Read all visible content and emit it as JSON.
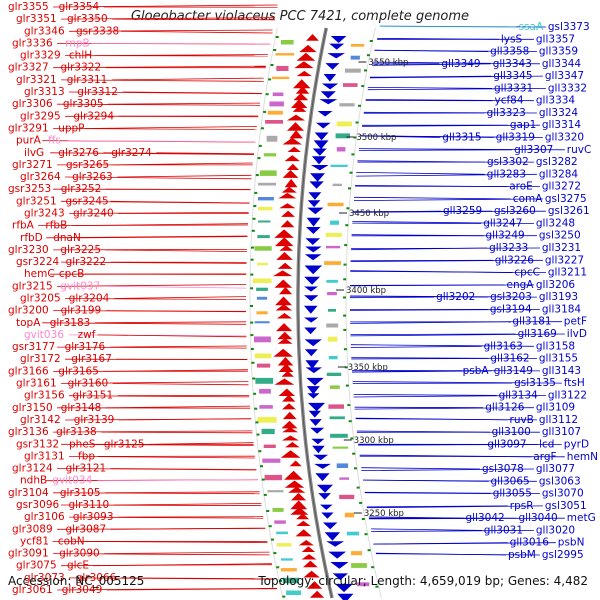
{
  "title": "Gloeobacter violaceus PCC 7421, complete genome",
  "footer": {
    "accession": "Accession: NC_005125",
    "topology": "Topology: circular; Length: 4,659,019 bp; Genes: 4,482"
  },
  "colors": {
    "forward": "#dd0000",
    "reverse": "#0000cc",
    "rna": "#ff88cc",
    "trna": "#33cccc",
    "tick": "#118811",
    "backbone": "#8a8a8a"
  },
  "kbp_marks": [
    "3550 kbp",
    "3500 kbp",
    "3450 kbp",
    "3400 kbp",
    "3350 kbp",
    "3300 kbp",
    "3250 kbp"
  ],
  "left_labels": [
    "glr3355",
    "glr3354",
    "glr3351",
    "glr3350",
    "glr3346",
    "gsr3338",
    "glr3336",
    "rnpB",
    "glr3329",
    "chlH",
    "glr3327",
    "glr3322",
    "glr3321",
    "glr3311",
    "glr3313",
    "glr3312",
    "glr3306",
    "glr3305",
    "glr3295",
    "glr3294",
    "glr3291",
    "uppP",
    "purA",
    "ffs",
    "ilvG",
    "glr3276",
    "glr3274",
    "glr3271",
    "gsr3265",
    "glr3264",
    "glr3263",
    "gsr3253",
    "glr3252",
    "glr3251",
    "gsr3245",
    "glr3243",
    "glr3240",
    "rfbA",
    "rfbB",
    "rfbD",
    "dnaN",
    "glr3230",
    "glr3225",
    "gsr3224",
    "glr3222",
    "hemC",
    "cpcB",
    "glr3215",
    "gvit037",
    "glr3205",
    "glr3204",
    "glr3200",
    "glr3199",
    "topA",
    "glr3183",
    "gvit036",
    "zwf",
    "gsr3177",
    "glr3176",
    "glr3172",
    "glr3167",
    "glr3166",
    "glr3165",
    "glr3161",
    "glr3160",
    "glr3156",
    "glr3151",
    "glr3150",
    "glr3148",
    "glr3142",
    "glr3139",
    "glr3136",
    "glr3138",
    "gsr3132",
    "pheS",
    "glr3125",
    "glr3131",
    "fbp",
    "glr3124",
    "glr3121",
    "ndhB",
    "gvit034",
    "glr3104",
    "glr3105",
    "gsr3096",
    "glr3110",
    "glr3106",
    "glr3093",
    "glr3089",
    "glr3087",
    "ycf81",
    "cobN",
    "glr3091",
    "glr3090",
    "glr3075",
    "glcE",
    "glr3073",
    "glr3066",
    "glr3061",
    "glr3049"
  ],
  "right_labels": [
    "ssaA",
    "gsl3373",
    "lysS",
    "gll3357",
    "gll3358",
    "gll3359",
    "gll3349",
    "gll3343",
    "gll3344",
    "gll3345",
    "gll3347",
    "gll3331",
    "gll3332",
    "ycf84",
    "gll3334",
    "gll3323",
    "gll3324",
    "gap1",
    "gll3314",
    "gll3315",
    "gll3319",
    "gll3320",
    "gll3307",
    "ruvC",
    "gsl3302",
    "gsl3282",
    "gll3283",
    "gll3284",
    "aroE",
    "gll3272",
    "comA",
    "gsl3275",
    "gll3259",
    "gsl3260",
    "gsl3261",
    "gll3247",
    "gll3248",
    "gll3249",
    "gsl3250",
    "gll3233",
    "gll3231",
    "gll3226",
    "gll3227",
    "cpcC",
    "gll3211",
    "engA",
    "gll3206",
    "gll3202",
    "gsl3203",
    "gll3193",
    "gsl3194",
    "gll3184",
    "gll3181",
    "petF",
    "gll3169",
    "ilvD",
    "gll3163",
    "gll3158",
    "gll3162",
    "gll3155",
    "psbA",
    "gll3149",
    "gll3143",
    "gsl3135",
    "ftsH",
    "gll3134",
    "gll3122",
    "gll3126",
    "gll3109",
    "ruvB",
    "gll3112",
    "gll3100",
    "gll3107",
    "gll3097",
    "lcd",
    "pyrD",
    "argF",
    "hemN",
    "gsl3078",
    "gll3077",
    "gll3065",
    "gsl3063",
    "gll3055",
    "gsl3070",
    "rpsR",
    "gsl3051",
    "gll3042",
    "gll3040",
    "metG",
    "gll3031",
    "gll3020",
    "gll3016",
    "psbN",
    "psbM",
    "gsl2995"
  ]
}
